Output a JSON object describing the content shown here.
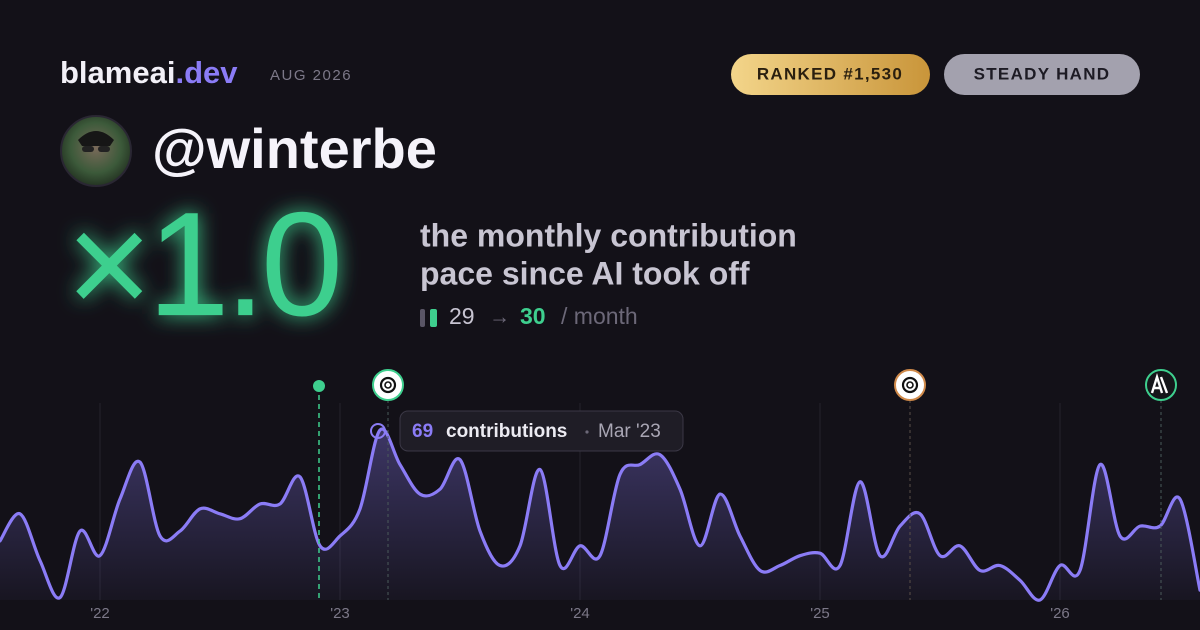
{
  "header": {
    "brand": "blameai",
    "brand_suffix": ".dev",
    "date": "AUG 2026",
    "badges": [
      "RANKED #1,530",
      "STEADY HAND"
    ],
    "username": "@winterbe"
  },
  "summary": {
    "multiplier": "×1.0",
    "description": [
      "the monthly contribution",
      "pace since AI took off"
    ],
    "before": "29",
    "arrow": "→",
    "after": "30",
    "unit": "/ month"
  },
  "chart_data": {
    "type": "area",
    "color": "#8b7cf6",
    "categories": [
      null,
      null,
      null,
      null,
      null,
      "'22",
      null,
      null,
      null,
      null,
      null,
      null,
      null,
      null,
      null,
      null,
      null,
      "'23",
      null,
      null,
      null,
      null,
      null,
      null,
      null,
      null,
      null,
      null,
      null,
      "'24",
      null,
      null,
      null,
      null,
      null,
      null,
      null,
      null,
      null,
      null,
      null,
      "'25",
      null,
      null,
      null,
      null,
      null,
      null,
      null,
      null,
      null,
      null,
      null,
      "'26",
      null,
      null,
      null,
      null,
      null,
      null,
      null
    ],
    "values": [
      24,
      35,
      16,
      1,
      28,
      18,
      41,
      56,
      26,
      28,
      37,
      35,
      33,
      39,
      39,
      50,
      22,
      26,
      37,
      69,
      55,
      43,
      45,
      57,
      28,
      14,
      22,
      53,
      14,
      22,
      18,
      51,
      55,
      59,
      45,
      22,
      43,
      26,
      12,
      14,
      18,
      19,
      14,
      48,
      18,
      30,
      35,
      18,
      22,
      12,
      14,
      8,
      0,
      14,
      12,
      55,
      26,
      30,
      30,
      41,
      4
    ],
    "ylim": [
      0,
      80
    ],
    "tooltip": {
      "label": "contributions",
      "date": "Mar '23"
    }
  }
}
